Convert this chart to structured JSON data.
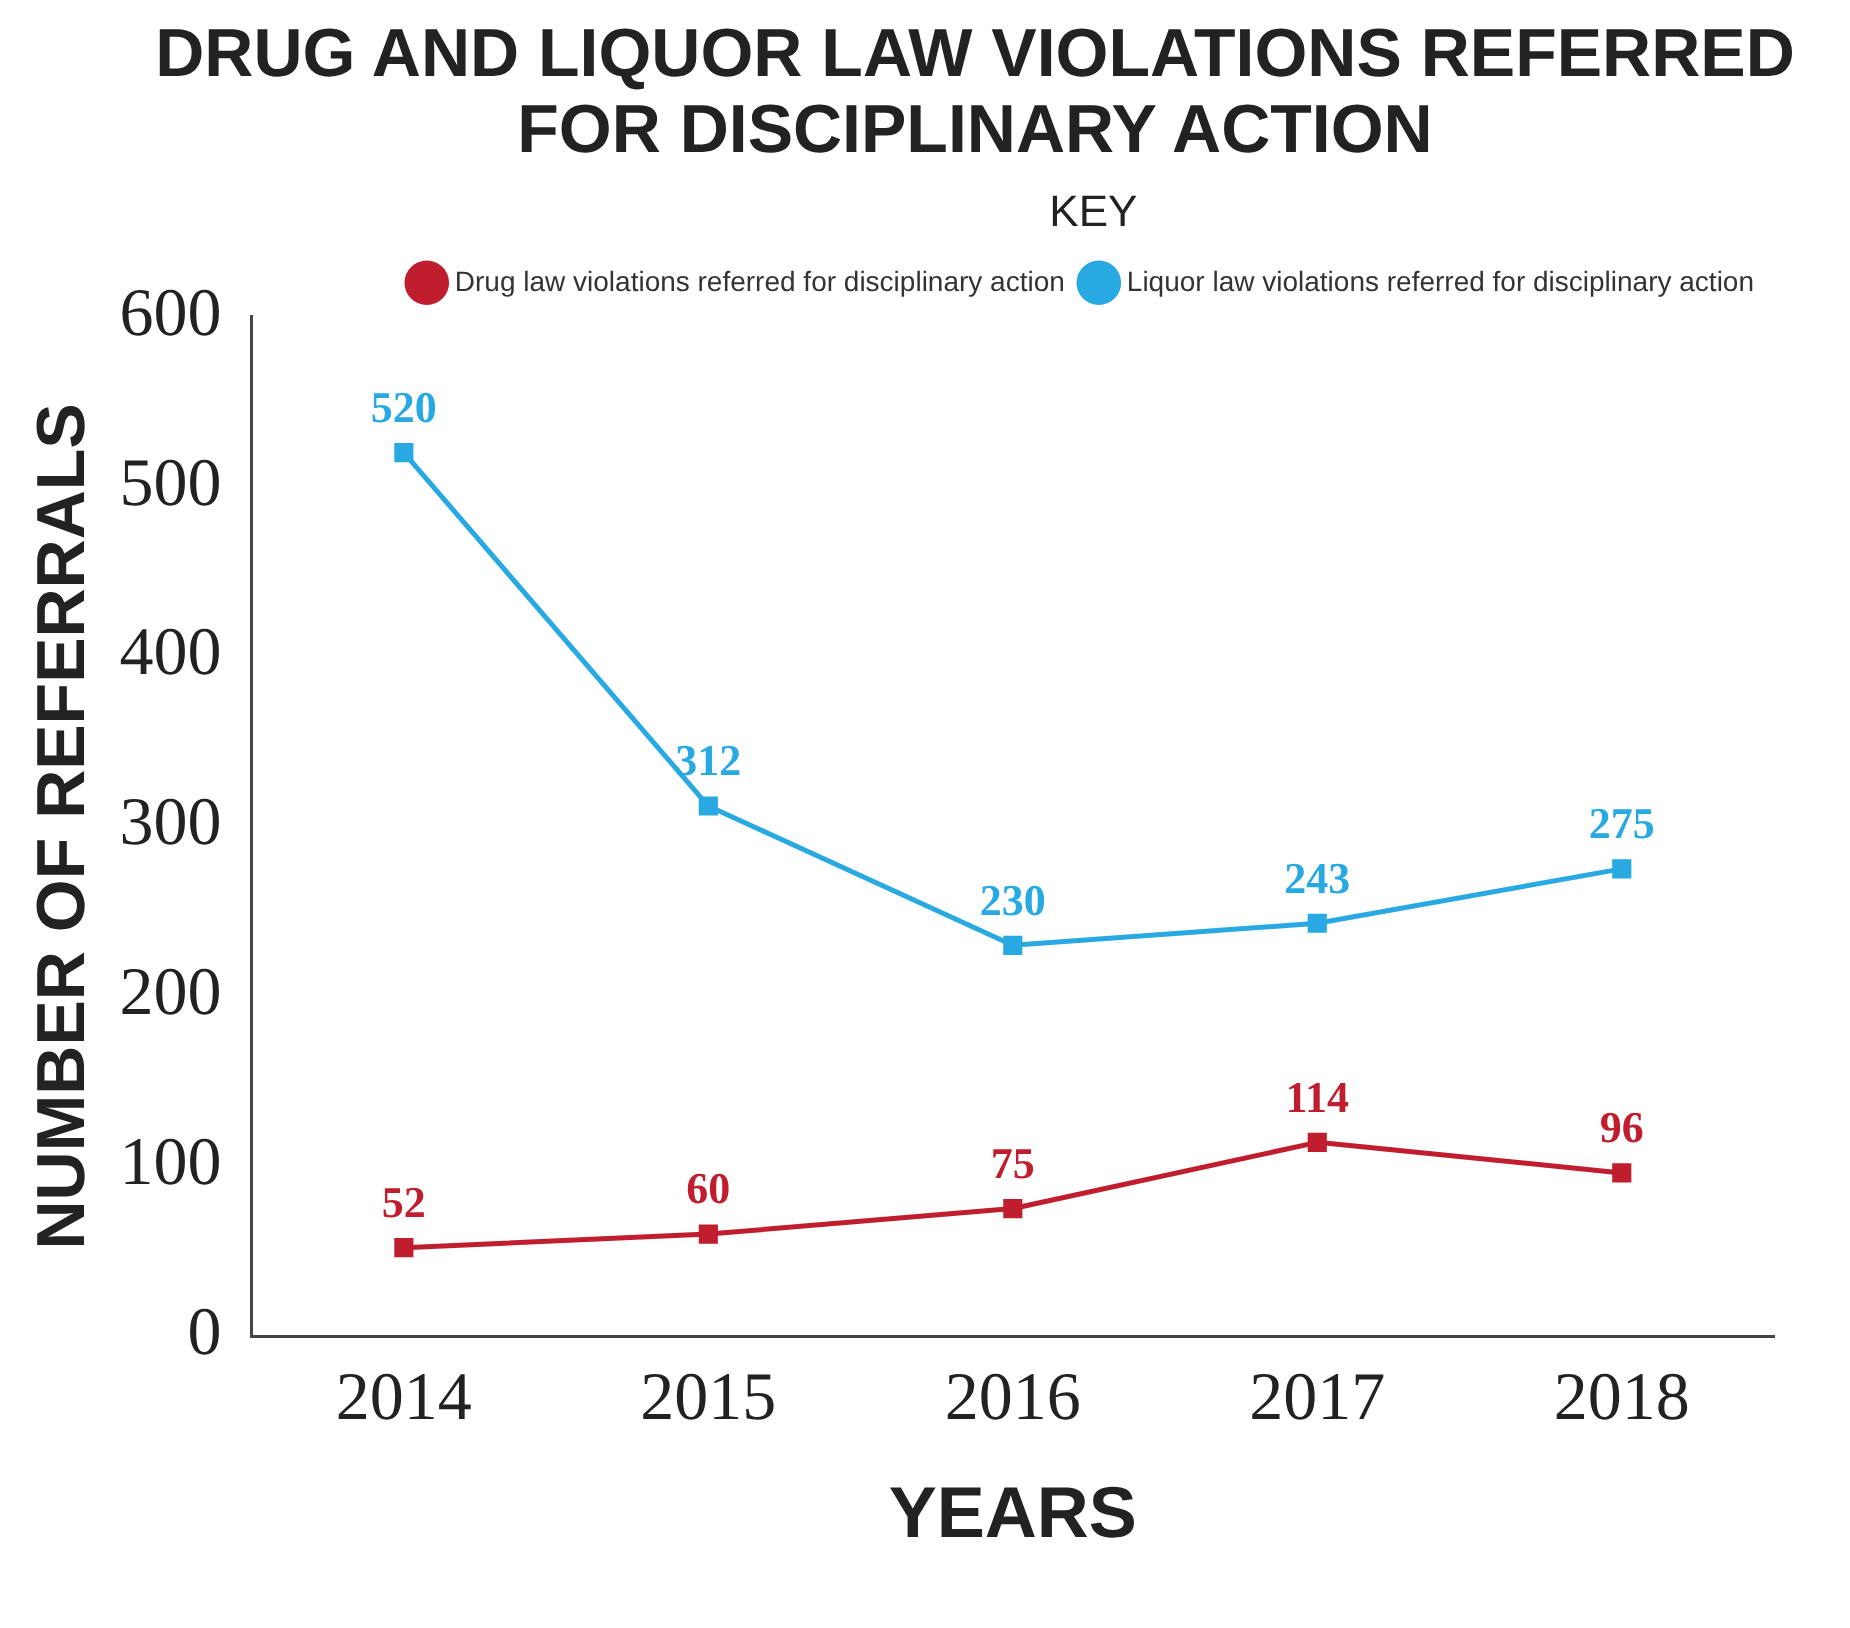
{
  "chart_data": {
    "type": "line",
    "title": "DRUG AND LIQUOR LAW VIOLATIONS REFERRED FOR DISCIPLINARY ACTION",
    "xlabel": "YEARS",
    "ylabel": "NUMBER OF REFERRALS",
    "legend_title": "KEY",
    "categories": [
      "2014",
      "2015",
      "2016",
      "2017",
      "2018"
    ],
    "series": [
      {
        "name": "Drug law violations referred for disciplinary action",
        "color": "#c01e2e",
        "values": [
          52,
          60,
          75,
          114,
          96
        ]
      },
      {
        "name": "Liquor law violations referred for disciplinary action",
        "color": "#29a9e1",
        "values": [
          520,
          312,
          230,
          243,
          275
        ]
      }
    ],
    "ylim": [
      0,
      600
    ],
    "yticks": [
      0,
      100,
      200,
      300,
      400,
      500,
      600
    ],
    "grid": false,
    "legend": "top right",
    "marker": "square",
    "line_style": "solid",
    "data_labels": true
  }
}
